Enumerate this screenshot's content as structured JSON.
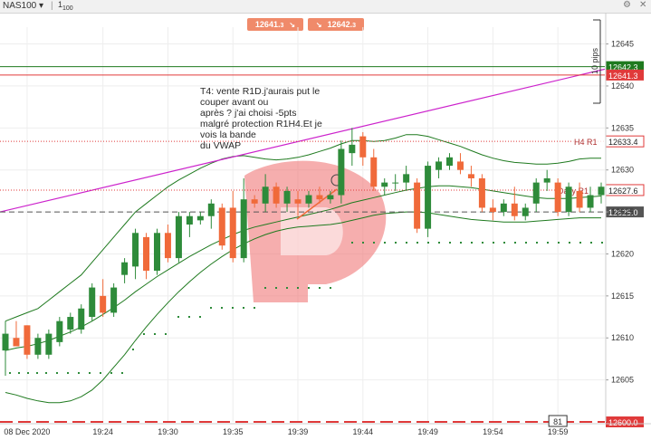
{
  "titlebar": {
    "symbol": "NAS100",
    "timeframe_label": "1",
    "timeframe_sub": "100",
    "dropdown_glyph": "▾",
    "settings_glyph": "⚙",
    "close_glyph": "✕"
  },
  "trade_buttons": {
    "sell_price": "12641.",
    "sell_price_small": "3",
    "buy_price": "12642.",
    "buy_price_small": "3"
  },
  "annotation": {
    "lines": [
      "T4: vente R1D.j'aurais put le",
      "couper  avant ou",
      "après ? j'ai choisi -5pts",
      "malgré protection R1H4.Et je",
      "vois la bande",
      "du VWAP"
    ]
  },
  "colors": {
    "up": "#2e8b3a",
    "down": "#f06a3a",
    "vwap": "#cc22cc",
    "bollinger": "#1f7a1f",
    "level": "#e03a3a",
    "bid": "#1f7a1f",
    "ask": "#e03a3a",
    "watermark": "#f07878"
  },
  "chart_data": {
    "type": "candlestick",
    "y_axis": {
      "min": 12600,
      "max": 12647,
      "ticks": [
        12605,
        12610,
        12615,
        12620,
        12625,
        12630,
        12635,
        12640,
        12645
      ]
    },
    "x_labels": [
      {
        "label": "08 Dec 2020",
        "index": 2
      },
      {
        "label": "19:24",
        "index": 9
      },
      {
        "label": "19:30",
        "index": 15
      },
      {
        "label": "19:35",
        "index": 21
      },
      {
        "label": "19:39",
        "index": 27
      },
      {
        "label": "19:44",
        "index": 33
      },
      {
        "label": "19:49",
        "index": 39
      },
      {
        "label": "19:54",
        "index": 45
      },
      {
        "label": "19:59",
        "index": 51
      }
    ],
    "candles": [
      {
        "o": 12608.5,
        "h": 12612.0,
        "l": 12605.5,
        "c": 12610.5
      },
      {
        "o": 12610.0,
        "h": 12612.0,
        "l": 12609.0,
        "c": 12609.0
      },
      {
        "o": 12611.5,
        "h": 12611.5,
        "l": 12607.5,
        "c": 12608.0
      },
      {
        "o": 12608.0,
        "h": 12610.5,
        "l": 12607.5,
        "c": 12610.0
      },
      {
        "o": 12608.0,
        "h": 12611.0,
        "l": 12607.5,
        "c": 12610.5
      },
      {
        "o": 12609.5,
        "h": 12612.5,
        "l": 12609.0,
        "c": 12612.0
      },
      {
        "o": 12611.0,
        "h": 12613.0,
        "l": 12610.5,
        "c": 12612.5
      },
      {
        "o": 12611.0,
        "h": 12614.0,
        "l": 12610.5,
        "c": 12613.5
      },
      {
        "o": 12612.5,
        "h": 12616.5,
        "l": 12612.0,
        "c": 12616.0
      },
      {
        "o": 12615.0,
        "h": 12617.0,
        "l": 12612.5,
        "c": 12613.0
      },
      {
        "o": 12613.0,
        "h": 12616.5,
        "l": 12612.5,
        "c": 12616.0
      },
      {
        "o": 12617.5,
        "h": 12619.5,
        "l": 12616.5,
        "c": 12619.0
      },
      {
        "o": 12618.5,
        "h": 12623.0,
        "l": 12617.0,
        "c": 12622.5
      },
      {
        "o": 12622.0,
        "h": 12622.5,
        "l": 12617.0,
        "c": 12618.0
      },
      {
        "o": 12618.0,
        "h": 12623.0,
        "l": 12617.5,
        "c": 12622.5
      },
      {
        "o": 12622.5,
        "h": 12623.5,
        "l": 12619.0,
        "c": 12619.5
      },
      {
        "o": 12619.5,
        "h": 12625.0,
        "l": 12619.0,
        "c": 12624.5
      },
      {
        "o": 12623.5,
        "h": 12625.0,
        "l": 12622.0,
        "c": 12624.5
      },
      {
        "o": 12624.0,
        "h": 12625.0,
        "l": 12623.5,
        "c": 12624.5
      },
      {
        "o": 12624.5,
        "h": 12626.5,
        "l": 12623.0,
        "c": 12626.0
      },
      {
        "o": 12625.5,
        "h": 12626.0,
        "l": 12620.5,
        "c": 12621.0
      },
      {
        "o": 12625.5,
        "h": 12627.5,
        "l": 12619.0,
        "c": 12619.5
      },
      {
        "o": 12619.5,
        "h": 12629.0,
        "l": 12619.0,
        "c": 12626.5
      },
      {
        "o": 12626.5,
        "h": 12627.0,
        "l": 12625.5,
        "c": 12626.0
      },
      {
        "o": 12626.0,
        "h": 12629.5,
        "l": 12625.0,
        "c": 12628.0
      },
      {
        "o": 12628.0,
        "h": 12628.5,
        "l": 12625.5,
        "c": 12626.0
      },
      {
        "o": 12626.0,
        "h": 12628.0,
        "l": 12625.0,
        "c": 12627.5
      },
      {
        "o": 12626.5,
        "h": 12627.5,
        "l": 12624.5,
        "c": 12626.0
      },
      {
        "o": 12626.0,
        "h": 12627.5,
        "l": 12625.5,
        "c": 12627.0
      },
      {
        "o": 12627.0,
        "h": 12628.0,
        "l": 12626.0,
        "c": 12626.5
      },
      {
        "o": 12626.5,
        "h": 12627.5,
        "l": 12626.0,
        "c": 12627.0
      },
      {
        "o": 12627.0,
        "h": 12633.5,
        "l": 12626.0,
        "c": 12632.5
      },
      {
        "o": 12632.0,
        "h": 12635.0,
        "l": 12630.5,
        "c": 12633.0
      },
      {
        "o": 12634.0,
        "h": 12634.5,
        "l": 12630.5,
        "c": 12631.5
      },
      {
        "o": 12631.5,
        "h": 12632.5,
        "l": 12627.5,
        "c": 12628.0
      },
      {
        "o": 12628.0,
        "h": 12629.0,
        "l": 12627.0,
        "c": 12628.5
      },
      {
        "o": 12628.5,
        "h": 12629.5,
        "l": 12627.5,
        "c": 12628.5
      },
      {
        "o": 12628.5,
        "h": 12630.5,
        "l": 12627.5,
        "c": 12629.5
      },
      {
        "o": 12628.5,
        "h": 12629.0,
        "l": 12622.5,
        "c": 12623.0
      },
      {
        "o": 12623.0,
        "h": 12631.0,
        "l": 12622.0,
        "c": 12630.5
      },
      {
        "o": 12630.0,
        "h": 12631.5,
        "l": 12629.0,
        "c": 12631.0
      },
      {
        "o": 12630.5,
        "h": 12632.0,
        "l": 12630.0,
        "c": 12631.5
      },
      {
        "o": 12631.0,
        "h": 12632.0,
        "l": 12629.5,
        "c": 12630.0
      },
      {
        "o": 12629.5,
        "h": 12630.5,
        "l": 12628.0,
        "c": 12629.0
      },
      {
        "o": 12629.0,
        "h": 12629.5,
        "l": 12625.0,
        "c": 12625.5
      },
      {
        "o": 12625.5,
        "h": 12626.5,
        "l": 12624.0,
        "c": 12625.0
      },
      {
        "o": 12625.0,
        "h": 12626.5,
        "l": 12624.5,
        "c": 12626.0
      },
      {
        "o": 12626.0,
        "h": 12628.0,
        "l": 12624.0,
        "c": 12624.5
      },
      {
        "o": 12624.5,
        "h": 12626.0,
        "l": 12624.0,
        "c": 12625.5
      },
      {
        "o": 12626.0,
        "h": 12629.0,
        "l": 12625.0,
        "c": 12628.5
      },
      {
        "o": 12628.5,
        "h": 12630.0,
        "l": 12627.5,
        "c": 12629.0
      },
      {
        "o": 12628.5,
        "h": 12629.0,
        "l": 12624.5,
        "c": 12625.0
      },
      {
        "o": 12625.0,
        "h": 12628.5,
        "l": 12624.5,
        "c": 12628.0
      },
      {
        "o": 12627.5,
        "h": 12628.5,
        "l": 12625.0,
        "c": 12625.5
      },
      {
        "o": 12625.5,
        "h": 12628.0,
        "l": 12625.0,
        "c": 12627.0
      },
      {
        "o": 12627.0,
        "h": 12628.5,
        "l": 12626.0,
        "c": 12628.0
      }
    ],
    "levels": [
      {
        "label": "12642.3",
        "value": 12642.3,
        "color": "#1f7a1f",
        "style": "solid",
        "text_color": "#ffffff"
      },
      {
        "label": "12641.3",
        "value": 12641.3,
        "color": "#e03a3a",
        "style": "solid",
        "text_color": "#ffffff"
      },
      {
        "label": "H4 R1",
        "value": 12633.4,
        "price": "12633.4",
        "color": "#e03a3a",
        "style": "dotted",
        "text_color": "#222222"
      },
      {
        "label": "Daily R1",
        "value": 12627.6,
        "price": "12627.6",
        "color": "#e03a3a",
        "style": "dotted",
        "text_color": "#222222"
      },
      {
        "label": "12625.0",
        "value": 12625.0,
        "color": "#555555",
        "style": "dashed",
        "text_color": "#ffffff"
      },
      {
        "label": "12600.0",
        "value": 12600.0,
        "color": "#e03a3a",
        "style": "longdash",
        "text_color": "#ffffff"
      }
    ],
    "vwap": {
      "start": 12625.0,
      "end": 12642.0
    },
    "bollinger": {
      "upper": [
        12612,
        12612.5,
        12613,
        12613.5,
        12614.5,
        12615.5,
        12616.5,
        12617.5,
        12619,
        12620.5,
        12622,
        12623.5,
        12625,
        12626,
        12627,
        12628,
        12628.8,
        12629.5,
        12630.2,
        12630.8,
        12631.3,
        12631.6,
        12631.7,
        12631.5,
        12631.3,
        12631.2,
        12631.3,
        12631.5,
        12631.8,
        12632.2,
        12632.6,
        12633.1,
        12633.5,
        12633.5,
        12633.4,
        12633.5,
        12633.8,
        12634.2,
        12634.2,
        12634.0,
        12633.6,
        12633.2,
        12632.8,
        12632.3,
        12631.8,
        12631.4,
        12631.1,
        12630.9,
        12630.8,
        12630.7,
        12630.7,
        12630.8,
        12631.0,
        12631.3,
        12631.4,
        12631.4
      ],
      "middle": [
        12608.5,
        12608.8,
        12609,
        12609.3,
        12609.7,
        12610.2,
        12610.7,
        12611.3,
        12612,
        12612.8,
        12613.6,
        12614.5,
        12615.5,
        12616.4,
        12617.3,
        12618.1,
        12618.9,
        12619.7,
        12620.4,
        12621.1,
        12621.7,
        12622.3,
        12622.8,
        12623.2,
        12623.5,
        12623.8,
        12624.1,
        12624.4,
        12624.7,
        12625.0,
        12625.3,
        12625.7,
        12626.1,
        12626.4,
        12626.7,
        12627.0,
        12627.3,
        12627.6,
        12627.8,
        12628.0,
        12628.1,
        12628.1,
        12628.0,
        12627.9,
        12627.7,
        12627.5,
        12627.3,
        12627.1,
        12626.9,
        12626.7,
        12626.6,
        12626.6,
        12626.6,
        12626.7,
        12626.8,
        12626.9
      ],
      "lower": [
        12603.5,
        12603.2,
        12602.8,
        12602.5,
        12602.3,
        12602.3,
        12602.5,
        12603.0,
        12603.8,
        12605.0,
        12606.5,
        12608.0,
        12609.7,
        12611.3,
        12612.8,
        12614.2,
        12615.5,
        12616.7,
        12617.8,
        12618.8,
        12619.7,
        12620.5,
        12621.2,
        12621.8,
        12622.3,
        12622.7,
        12623.0,
        12623.2,
        12623.3,
        12623.4,
        12623.5,
        12623.7,
        12624.0,
        12624.3,
        12624.6,
        12624.8,
        12624.9,
        12625.0,
        12625.0,
        12624.9,
        12624.7,
        12624.5,
        12624.3,
        12624.1,
        12624.0,
        12623.9,
        12623.8,
        12623.8,
        12623.8,
        12623.9,
        12624.0,
        12624.1,
        12624.2,
        12624.3,
        12624.3,
        12624.3
      ]
    },
    "markers": [
      {
        "label": "81",
        "index": 51
      },
      {
        "label": "10 pips",
        "index": 55
      }
    ]
  }
}
